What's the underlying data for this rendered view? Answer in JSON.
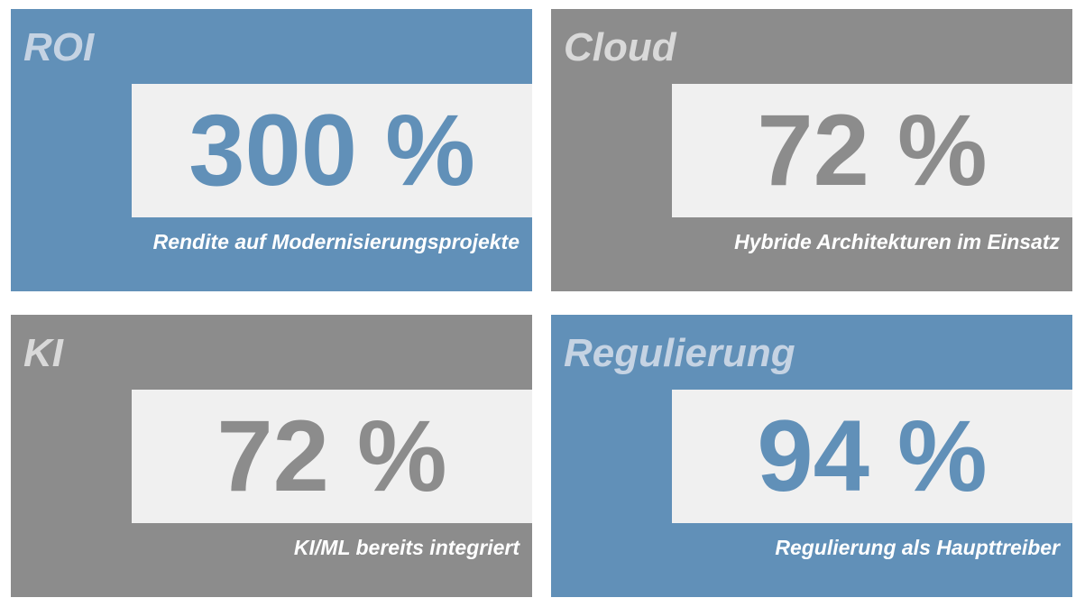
{
  "tiles": [
    {
      "title": "ROI",
      "value": "300 %",
      "caption": "Rendite auf Modernisierungsprojekte"
    },
    {
      "title": "Cloud",
      "value": "72 %",
      "caption": "Hybride Architekturen im Einsatz"
    },
    {
      "title": "KI",
      "value": "72 %",
      "caption": "KI/ML bereits integriert"
    },
    {
      "title": "Regulierung",
      "value": "94 %",
      "caption": "Regulierung als Haupttreiber"
    }
  ]
}
